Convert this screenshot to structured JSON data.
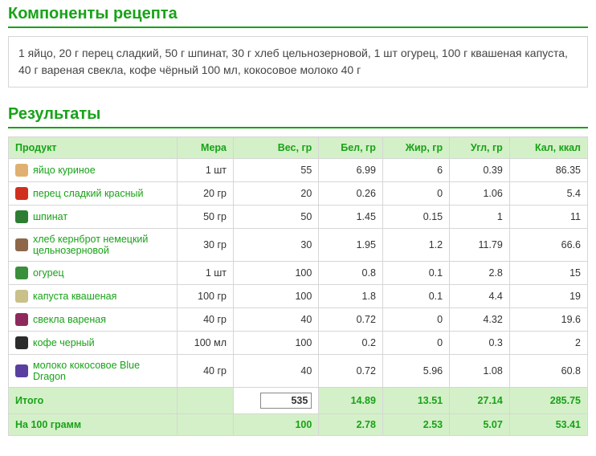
{
  "section1_title": "Компоненты рецепта",
  "ingredients_text": "1 яйцо, 20 г перец сладкий, 50 г шпинат, 30 г хлеб цельнозерновой, 1 шт огурец, 100 г квашеная капуста, 40 г вареная свекла, кофе чёрный 100 мл, кокосовое молоко 40 г",
  "section2_title": "Результаты",
  "columns": [
    "Продукт",
    "Мера",
    "Вес, гр",
    "Бел, гр",
    "Жир, гр",
    "Угл, гр",
    "Кал, ккал"
  ],
  "rows": [
    {
      "icon_color": "#e0b070",
      "name": "яйцо куриное",
      "measure": "1 шт",
      "weight": "55",
      "protein": "6.99",
      "fat": "6",
      "carbs": "0.39",
      "kcal": "86.35"
    },
    {
      "icon_color": "#d12f1e",
      "name": "перец сладкий красный",
      "measure": "20 гр",
      "weight": "20",
      "protein": "0.26",
      "fat": "0",
      "carbs": "1.06",
      "kcal": "5.4"
    },
    {
      "icon_color": "#2e7d32",
      "name": "шпинат",
      "measure": "50 гр",
      "weight": "50",
      "protein": "1.45",
      "fat": "0.15",
      "carbs": "1",
      "kcal": "11"
    },
    {
      "icon_color": "#8d6748",
      "name": "хлеб кернброт немецкий цельнозерновой",
      "measure": "30 гр",
      "weight": "30",
      "protein": "1.95",
      "fat": "1.2",
      "carbs": "11.79",
      "kcal": "66.6"
    },
    {
      "icon_color": "#3a8f3a",
      "name": "огурец",
      "measure": "1 шт",
      "weight": "100",
      "protein": "0.8",
      "fat": "0.1",
      "carbs": "2.8",
      "kcal": "15"
    },
    {
      "icon_color": "#c9c08a",
      "name": "капуста квашеная",
      "measure": "100 гр",
      "weight": "100",
      "protein": "1.8",
      "fat": "0.1",
      "carbs": "4.4",
      "kcal": "19"
    },
    {
      "icon_color": "#8e2a5b",
      "name": "свекла вареная",
      "measure": "40 гр",
      "weight": "40",
      "protein": "0.72",
      "fat": "0",
      "carbs": "4.32",
      "kcal": "19.6"
    },
    {
      "icon_color": "#2b2b2b",
      "name": "кофе черный",
      "measure": "100 мл",
      "weight": "100",
      "protein": "0.2",
      "fat": "0",
      "carbs": "0.3",
      "kcal": "2"
    },
    {
      "icon_color": "#5a3fa0",
      "name": "молоко кокосовое Blue Dragon",
      "measure": "40 гр",
      "weight": "40",
      "protein": "0.72",
      "fat": "5.96",
      "carbs": "1.08",
      "kcal": "60.8"
    }
  ],
  "totals": {
    "label": "Итого",
    "weight": "535",
    "protein": "14.89",
    "fat": "13.51",
    "carbs": "27.14",
    "kcal": "285.75"
  },
  "per100": {
    "label": "На 100 грамм",
    "weight": "100",
    "protein": "2.78",
    "fat": "2.53",
    "carbs": "5.07",
    "kcal": "53.41"
  },
  "colors": {
    "accent": "#18a218",
    "header_bg": "#d4f0c8",
    "border": "#d6d6d6"
  }
}
